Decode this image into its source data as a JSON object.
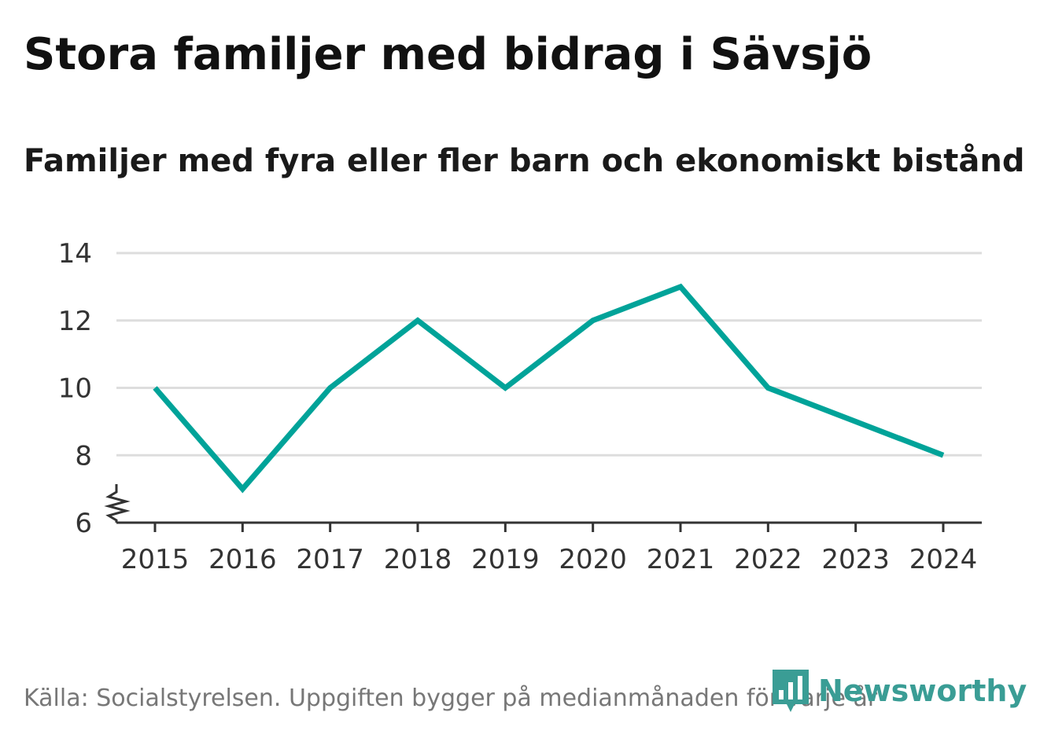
{
  "title": "Stora familjer med bidrag i Sävsjö",
  "subtitle": "Familjer med fyra eller fler barn och ekonomiskt bistånd",
  "footer": "Källa: Socialstyrelsen. Uppgiften bygger på medianmånaden för varje år",
  "logo_text": "Newsworthy",
  "colors": {
    "line": "#00a399",
    "grid": "#dddddd",
    "axis": "#333333",
    "tick_text": "#333333",
    "logo": "#3a9d95"
  },
  "chart_data": {
    "type": "line",
    "title": "Stora familjer med bidrag i Sävsjö",
    "subtitle": "Familjer med fyra eller fler barn och ekonomiskt bistånd",
    "xlabel": "",
    "ylabel": "",
    "categories": [
      "2015",
      "2016",
      "2017",
      "2018",
      "2019",
      "2020",
      "2021",
      "2022",
      "2023",
      "2024"
    ],
    "series": [
      {
        "values": [
          10,
          7,
          10,
          12,
          10,
          12,
          13,
          10,
          9,
          8
        ]
      }
    ],
    "ylim": [
      6,
      14
    ],
    "yticks": [
      6,
      8,
      10,
      12,
      14
    ],
    "axis_break": true,
    "grid": true,
    "legend": "none"
  }
}
